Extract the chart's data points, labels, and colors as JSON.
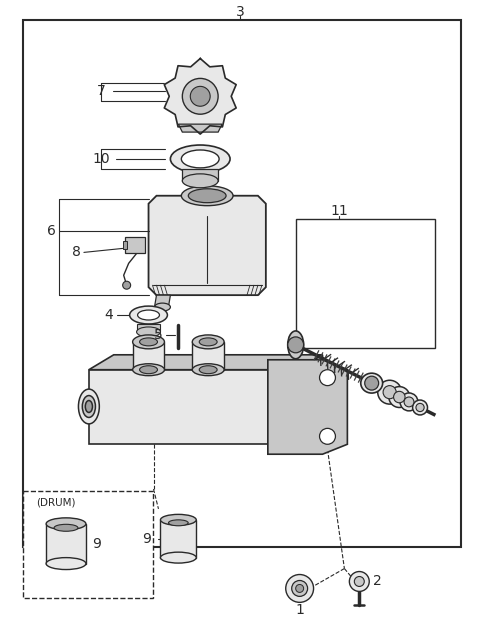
{
  "bg_color": "#ffffff",
  "line_color": "#2a2a2a",
  "gray_light": "#e8e8e8",
  "gray_mid": "#c8c8c8",
  "gray_dark": "#a0a0a0",
  "fig_width": 4.8,
  "fig_height": 6.4,
  "dpi": 100
}
